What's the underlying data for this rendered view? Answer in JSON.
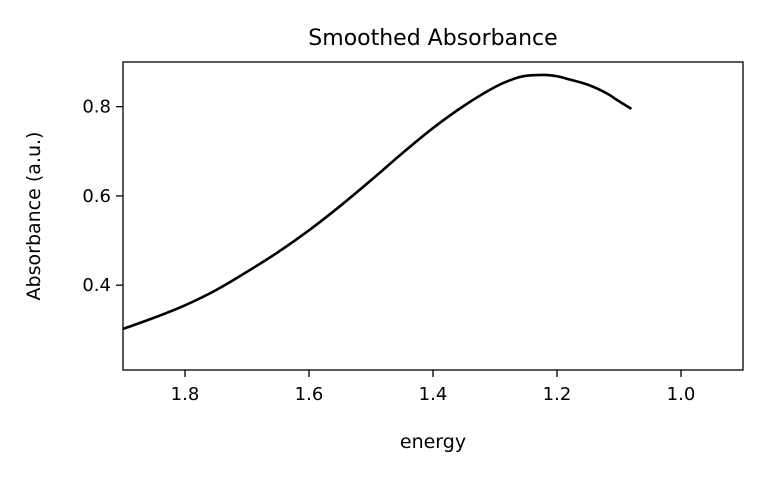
{
  "chart_data": {
    "type": "line",
    "title": "Smoothed Absorbance",
    "xlabel": "energy",
    "ylabel": "Absorbance (a.u.)",
    "xlim": [
      1.9,
      0.9
    ],
    "ylim": [
      0.21,
      0.9
    ],
    "x_inverted": true,
    "xticks": [
      1.8,
      1.6,
      1.4,
      1.2,
      1.0
    ],
    "xtick_labels": [
      "1.8",
      "1.6",
      "1.4",
      "1.2",
      "1.0"
    ],
    "yticks": [
      0.4,
      0.6,
      0.8
    ],
    "ytick_labels": [
      "0.4",
      "0.6",
      "0.8"
    ],
    "grid": false,
    "legend": "none",
    "series": [
      {
        "color": "#000000",
        "x": [
          1.9,
          1.85,
          1.8,
          1.75,
          1.7,
          1.65,
          1.6,
          1.55,
          1.5,
          1.45,
          1.4,
          1.35,
          1.3,
          1.27,
          1.25,
          1.22,
          1.2,
          1.18,
          1.15,
          1.12,
          1.1,
          1.08
        ],
        "y": [
          0.302,
          0.327,
          0.355,
          0.389,
          0.43,
          0.474,
          0.523,
          0.577,
          0.635,
          0.695,
          0.752,
          0.802,
          0.844,
          0.862,
          0.869,
          0.871,
          0.868,
          0.861,
          0.849,
          0.83,
          0.812,
          0.795
        ]
      }
    ]
  }
}
